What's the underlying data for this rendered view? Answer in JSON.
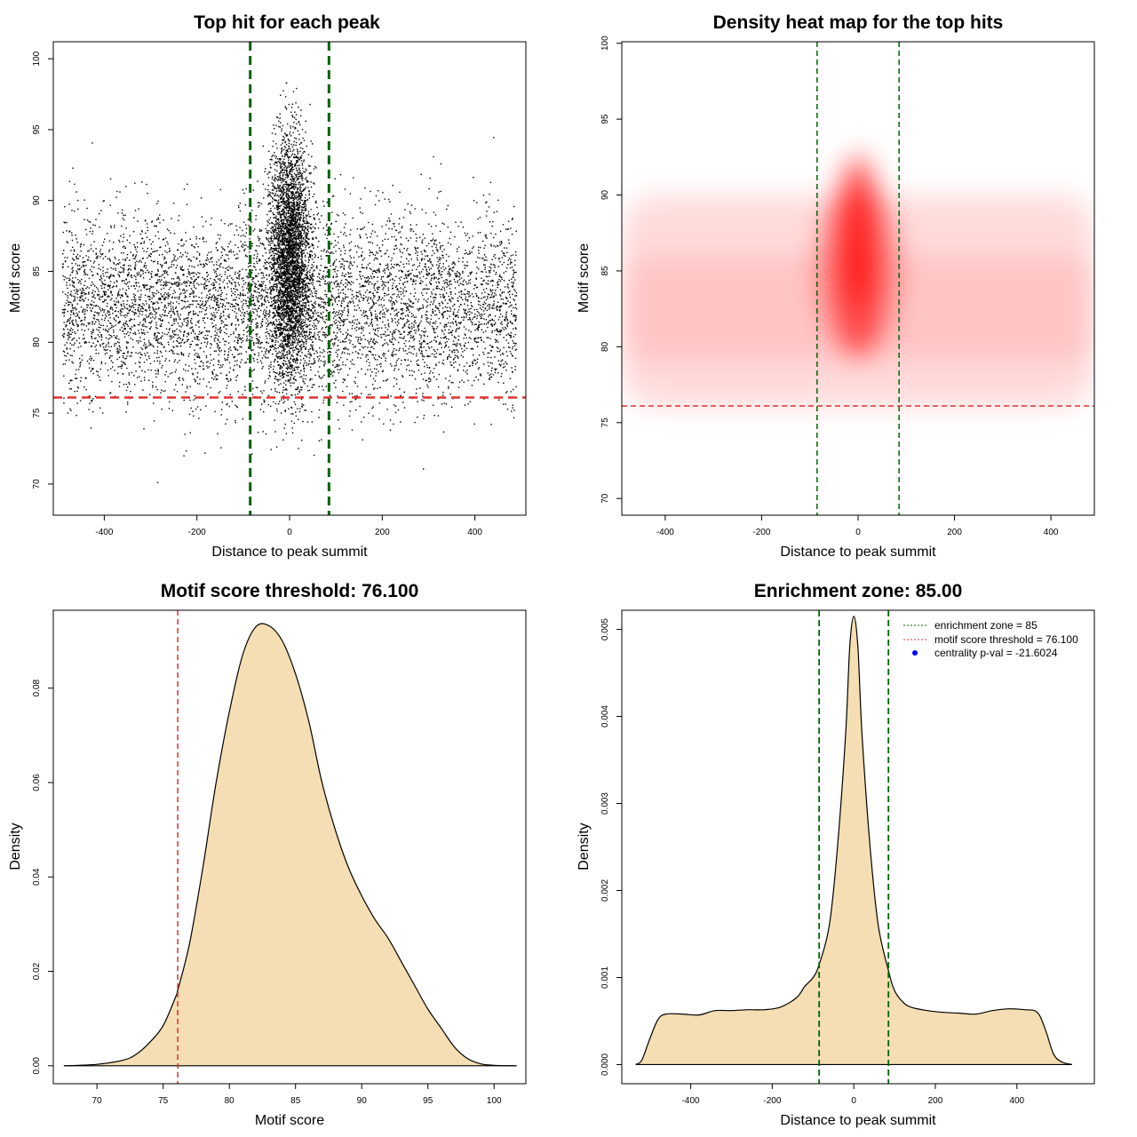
{
  "chart_data": [
    {
      "id": "scatter",
      "type": "scatter",
      "title": "Top hit for each peak",
      "xlabel": "Distance to peak summit",
      "ylabel": "Motif score",
      "xlim": [
        -510,
        510
      ],
      "ylim": [
        67.8,
        101.2
      ],
      "xticks": [
        -400,
        -200,
        0,
        200,
        400
      ],
      "yticks": [
        70,
        75,
        80,
        85,
        90,
        95,
        100
      ],
      "x_range_of_points": [
        -490,
        490
      ],
      "enrichment_zone_lines_x": [
        -85,
        85
      ],
      "threshold_line_y": 76.1,
      "background_score_mean": 82.5,
      "central_cluster_peak_score": 86,
      "colors": {
        "points": "#000000",
        "zone_lines": "#006400",
        "threshold_line": "#e03030"
      }
    },
    {
      "id": "heatmap",
      "type": "heatmap",
      "title": "Density heat map for the top hits",
      "xlabel": "Distance to peak summit",
      "ylabel": "Motif score",
      "xlim": [
        -490,
        490
      ],
      "ylim": [
        68.9,
        100.1
      ],
      "xticks": [
        -400,
        -200,
        0,
        200,
        400
      ],
      "yticks": [
        70,
        75,
        80,
        85,
        90,
        95,
        100
      ],
      "enrichment_zone_lines_x": [
        -85,
        85
      ],
      "threshold_line_y": 76.1,
      "density_max_at": {
        "x": 0,
        "y": 86
      },
      "colors": {
        "low": "#ffffff",
        "mid": "#0000ff",
        "high": "#ff0000",
        "zone_lines": "#006400",
        "threshold_line": "#e03030"
      }
    },
    {
      "id": "score_density",
      "type": "area",
      "title": "Motif score threshold: 76.100",
      "xlabel": "Motif score",
      "ylabel": "Density",
      "xlim": [
        66.7,
        102.4
      ],
      "ylim": [
        -0.0038,
        0.0965
      ],
      "xticks": [
        70,
        75,
        80,
        85,
        90,
        95,
        100
      ],
      "yticks": [
        0.0,
        0.02,
        0.04,
        0.06,
        0.08
      ],
      "ytick_labels": [
        "0.00",
        "0.02",
        "0.04",
        "0.06",
        "0.08"
      ],
      "x": [
        67.5,
        70,
        72,
        73,
        74,
        75,
        76,
        76.1,
        77,
        78,
        79,
        80,
        81,
        82,
        83,
        84,
        85,
        86,
        87,
        88,
        89,
        90,
        91,
        92,
        93,
        94,
        95,
        96,
        97,
        98,
        99,
        100,
        101.7
      ],
      "y": [
        0.0,
        0.0003,
        0.0012,
        0.0025,
        0.005,
        0.0085,
        0.015,
        0.016,
        0.026,
        0.042,
        0.06,
        0.075,
        0.087,
        0.093,
        0.0932,
        0.09,
        0.083,
        0.073,
        0.06,
        0.05,
        0.042,
        0.036,
        0.031,
        0.027,
        0.022,
        0.017,
        0.012,
        0.008,
        0.004,
        0.0015,
        0.0004,
        0.0001,
        0.0
      ],
      "threshold_line_x": 76.1,
      "colors": {
        "fill": "#f5deb3",
        "line": "#000000",
        "threshold_line": "#e03030"
      }
    },
    {
      "id": "distance_density",
      "type": "area",
      "title": "Enrichment zone: 85.00",
      "xlabel": "Distance to peak summit",
      "ylabel": "Density",
      "xlim": [
        -569,
        590
      ],
      "ylim": [
        -0.00022,
        0.00522
      ],
      "xticks": [
        -400,
        -200,
        0,
        200,
        400
      ],
      "yticks": [
        0.0,
        0.001,
        0.002,
        0.003,
        0.004,
        0.005
      ],
      "ytick_labels": [
        "0.000",
        "0.001",
        "0.002",
        "0.003",
        "0.004",
        "0.005"
      ],
      "x": [
        -535,
        -520,
        -500,
        -480,
        -460,
        -420,
        -380,
        -340,
        -300,
        -260,
        -220,
        -180,
        -140,
        -120,
        -100,
        -85,
        -60,
        -40,
        -20,
        -10,
        0,
        10,
        20,
        40,
        60,
        85,
        100,
        120,
        140,
        180,
        220,
        260,
        300,
        340,
        380,
        420,
        450,
        470,
        490,
        510,
        535
      ],
      "y": [
        0.0,
        5e-05,
        0.0003,
        0.00052,
        0.00058,
        0.00058,
        0.00057,
        0.00062,
        0.00062,
        0.00063,
        0.00063,
        0.00066,
        0.00077,
        0.0009,
        0.001,
        0.00115,
        0.0016,
        0.0025,
        0.0038,
        0.0048,
        0.00515,
        0.0048,
        0.0038,
        0.0025,
        0.0016,
        0.00108,
        0.00085,
        0.00072,
        0.00066,
        0.00062,
        0.0006,
        0.00059,
        0.00058,
        0.00062,
        0.00064,
        0.00063,
        0.0006,
        0.0004,
        0.00012,
        3e-05,
        0.0
      ],
      "zone_lines_x": [
        -85,
        85
      ],
      "legend": [
        {
          "label": "enrichment zone = 85",
          "symbol": "dotted-line",
          "color": "#006400"
        },
        {
          "label": "motif score threshold = 76.100",
          "symbol": "dotted-line",
          "color": "#e03030"
        },
        {
          "label": "centrality p-val = -21.6024",
          "symbol": "dot",
          "color": "#0000ff"
        }
      ],
      "legend_position": "top-right",
      "colors": {
        "fill": "#f5deb3",
        "line": "#000000",
        "zone_lines": "#006400"
      }
    }
  ]
}
